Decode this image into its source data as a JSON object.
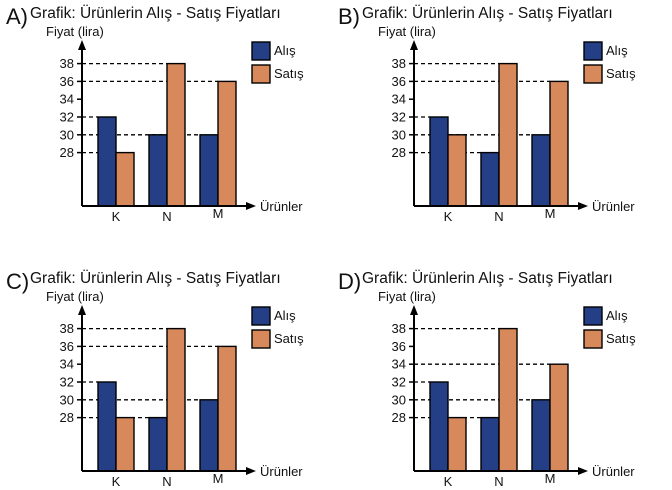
{
  "chart_data": [
    {
      "option": "A)",
      "type": "bar",
      "title": "Grafik: Ürünlerin Alış - Satış Fiyatları",
      "ylabel": "Fiyat (lira)",
      "xlabel": "Ürünler",
      "categories": [
        "K",
        "N",
        "M"
      ],
      "yticks": [
        28,
        30,
        32,
        34,
        36,
        38
      ],
      "ylim": [
        22,
        40
      ],
      "legend": "top-right",
      "series": [
        {
          "name": "Alış",
          "values": [
            32,
            30,
            30
          ],
          "color": "#243f85"
        },
        {
          "name": "Satış",
          "values": [
            28,
            38,
            36
          ],
          "color": "#d8895b"
        }
      ]
    },
    {
      "option": "B)",
      "type": "bar",
      "title": "Grafik: Ürünlerin Alış - Satış Fiyatları",
      "ylabel": "Fiyat (lira)",
      "xlabel": "Ürünler",
      "categories": [
        "K",
        "N",
        "M"
      ],
      "yticks": [
        28,
        30,
        32,
        34,
        36,
        38
      ],
      "ylim": [
        22,
        40
      ],
      "legend": "top-right",
      "series": [
        {
          "name": "Alış",
          "values": [
            32,
            28,
            30
          ],
          "color": "#243f85"
        },
        {
          "name": "Satış",
          "values": [
            30,
            38,
            36
          ],
          "color": "#d8895b"
        }
      ]
    },
    {
      "option": "C)",
      "type": "bar",
      "title": "Grafik: Ürünlerin Alış - Satış Fiyatları",
      "ylabel": "Fiyat (lira)",
      "xlabel": "Ürünler",
      "categories": [
        "K",
        "N",
        "M"
      ],
      "yticks": [
        28,
        30,
        32,
        34,
        36,
        38
      ],
      "ylim": [
        22,
        40
      ],
      "legend": "top-right",
      "series": [
        {
          "name": "Alış",
          "values": [
            32,
            28,
            30
          ],
          "color": "#243f85"
        },
        {
          "name": "Satış",
          "values": [
            28,
            38,
            36
          ],
          "color": "#d8895b"
        }
      ]
    },
    {
      "option": "D)",
      "type": "bar",
      "title": "Grafik: Ürünlerin Alış - Satış Fiyatları",
      "ylabel": "Fiyat (lira)",
      "xlabel": "Ürünler",
      "categories": [
        "K",
        "N",
        "M"
      ],
      "yticks": [
        28,
        30,
        32,
        34,
        36,
        38
      ],
      "ylim": [
        22,
        40
      ],
      "legend": "top-right",
      "series": [
        {
          "name": "Alış",
          "values": [
            32,
            28,
            30
          ],
          "color": "#243f85"
        },
        {
          "name": "Satış",
          "values": [
            28,
            38,
            34
          ],
          "color": "#d8895b"
        }
      ]
    }
  ]
}
